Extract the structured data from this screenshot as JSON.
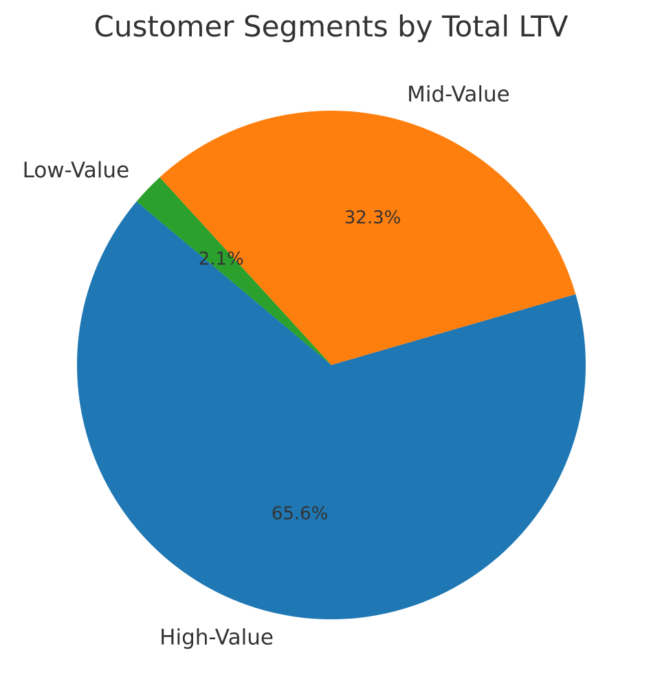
{
  "chart_data": {
    "type": "pie",
    "title": "Customer Segments by Total LTV",
    "start_angle_deg": 140,
    "direction": "counterclockwise",
    "slices": [
      {
        "label": "High-Value",
        "value": 65.6,
        "pct_label": "65.6%",
        "color": "#1f77b4"
      },
      {
        "label": "Mid-Value",
        "value": 32.3,
        "pct_label": "32.3%",
        "color": "#ff7f0e"
      },
      {
        "label": "Low-Value",
        "value": 2.1,
        "pct_label": "2.1%",
        "color": "#2ca02c"
      }
    ],
    "legend": "none",
    "text_color": "#333333"
  }
}
